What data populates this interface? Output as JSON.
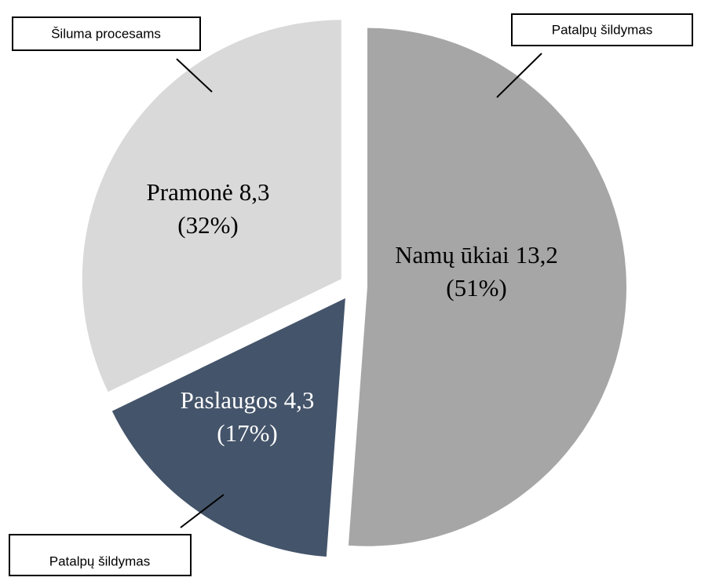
{
  "chart_data": {
    "type": "pie",
    "categories": [
      "Namų ūkiai",
      "Paslaugos",
      "Pramonė"
    ],
    "values": [
      13.2,
      4.3,
      8.3
    ],
    "value_labels": [
      "13,2",
      "4,3",
      "8,3"
    ],
    "percent_labels": [
      "(51%)",
      "(17%)",
      "(32%)"
    ],
    "colors": [
      "#a6a6a6",
      "#44546a",
      "#d9d9d9"
    ],
    "label_colors": [
      "#000000",
      "#ffffff",
      "#000000"
    ],
    "annotations": [
      "Patalpų šildymas",
      "Patalpų šildymas",
      "Šiluma procesams"
    ]
  }
}
